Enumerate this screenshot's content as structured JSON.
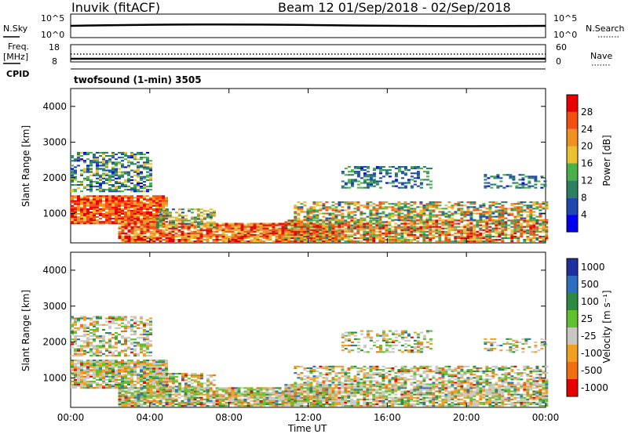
{
  "header": {
    "site": "Inuvik (fitACF)",
    "beam_dates": "Beam 12  01/Sep/2018 - 02/Sep/2018",
    "program": "twofsound (1-min) 3505"
  },
  "top_panels": {
    "nsky_label": "N.Sky",
    "nsky_ticks": [
      "10^5",
      "10^0"
    ],
    "nsearch_label": "N.Search",
    "nsearch_ticks": [
      "10^5",
      "10^0"
    ],
    "freq_label": "Freq.",
    "freq_unit": "[MHz]",
    "freq_ticks": [
      "18",
      "8"
    ],
    "nave_label": "Nave",
    "nave_ticks": [
      "60",
      "0"
    ],
    "cpid_label": "CPID"
  },
  "chart_data": [
    {
      "type": "heatmap",
      "name": "power",
      "ylabel": "Slant Range [km]",
      "ylim": [
        180,
        4500
      ],
      "y_ticks": [
        1000,
        2000,
        3000,
        4000
      ],
      "colorbar_label": "Power [dB]",
      "colorbar_ticks": [
        "28",
        "24",
        "20",
        "16",
        "12",
        "8",
        "4"
      ],
      "colors": [
        "#0000ee",
        "#1e48b0",
        "#2a8060",
        "#4ab04a",
        "#e8c030",
        "#f09020",
        "#f05010",
        "#e80000"
      ]
    },
    {
      "type": "heatmap",
      "name": "velocity",
      "ylabel": "Slant Range [km]",
      "ylim": [
        180,
        4500
      ],
      "y_ticks": [
        1000,
        2000,
        3000,
        4000
      ],
      "colorbar_label": "Velocity [m s⁻¹]",
      "colorbar_ticks": [
        "1000",
        "500",
        "100",
        "25",
        "-25",
        "-100",
        "-500",
        "-1000"
      ],
      "colors": [
        "#2030a0",
        "#2e6ec0",
        "#2e8a40",
        "#60c030",
        "#c8c8c0",
        "#f0a020",
        "#f07010",
        "#e80000"
      ],
      "xlabel": "Time UT",
      "x_ticks": [
        "00:00",
        "04:00",
        "08:00",
        "12:00",
        "16:00",
        "20:00",
        "00:00"
      ]
    }
  ]
}
